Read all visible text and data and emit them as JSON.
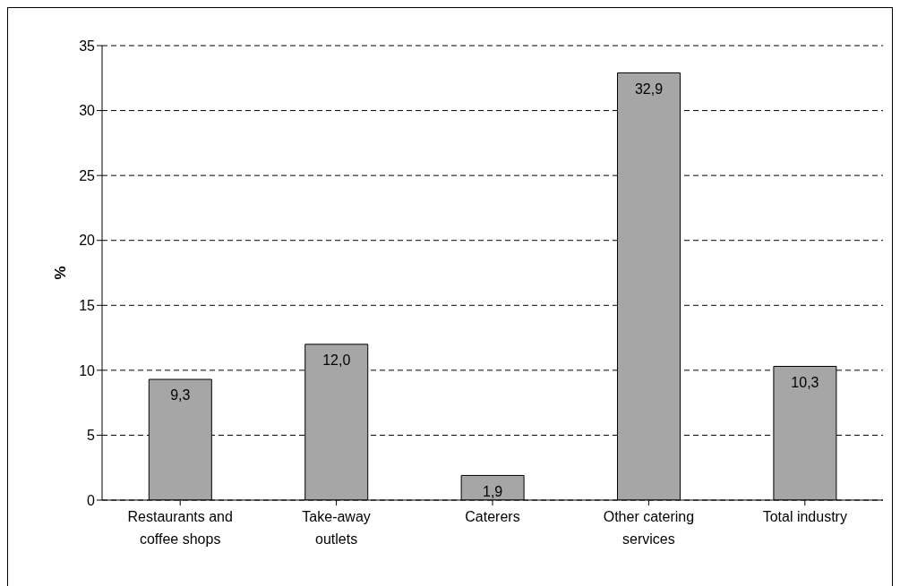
{
  "chart_data": {
    "type": "bar",
    "ylabel": "%",
    "categories": [
      "Restaurants and coffee shops",
      "Take-away outlets",
      "Caterers",
      "Other catering services",
      "Total industry"
    ],
    "values": [
      9.3,
      12.0,
      1.9,
      32.9,
      10.3
    ],
    "value_labels": [
      "9,3",
      "12,0",
      "1,9",
      "32,9",
      "10,3"
    ],
    "color": "#a6a6a6",
    "ylim": [
      0,
      35
    ],
    "yticks": [
      0,
      5,
      10,
      15,
      20,
      25,
      30,
      35
    ],
    "grid": "y",
    "legend": false
  }
}
